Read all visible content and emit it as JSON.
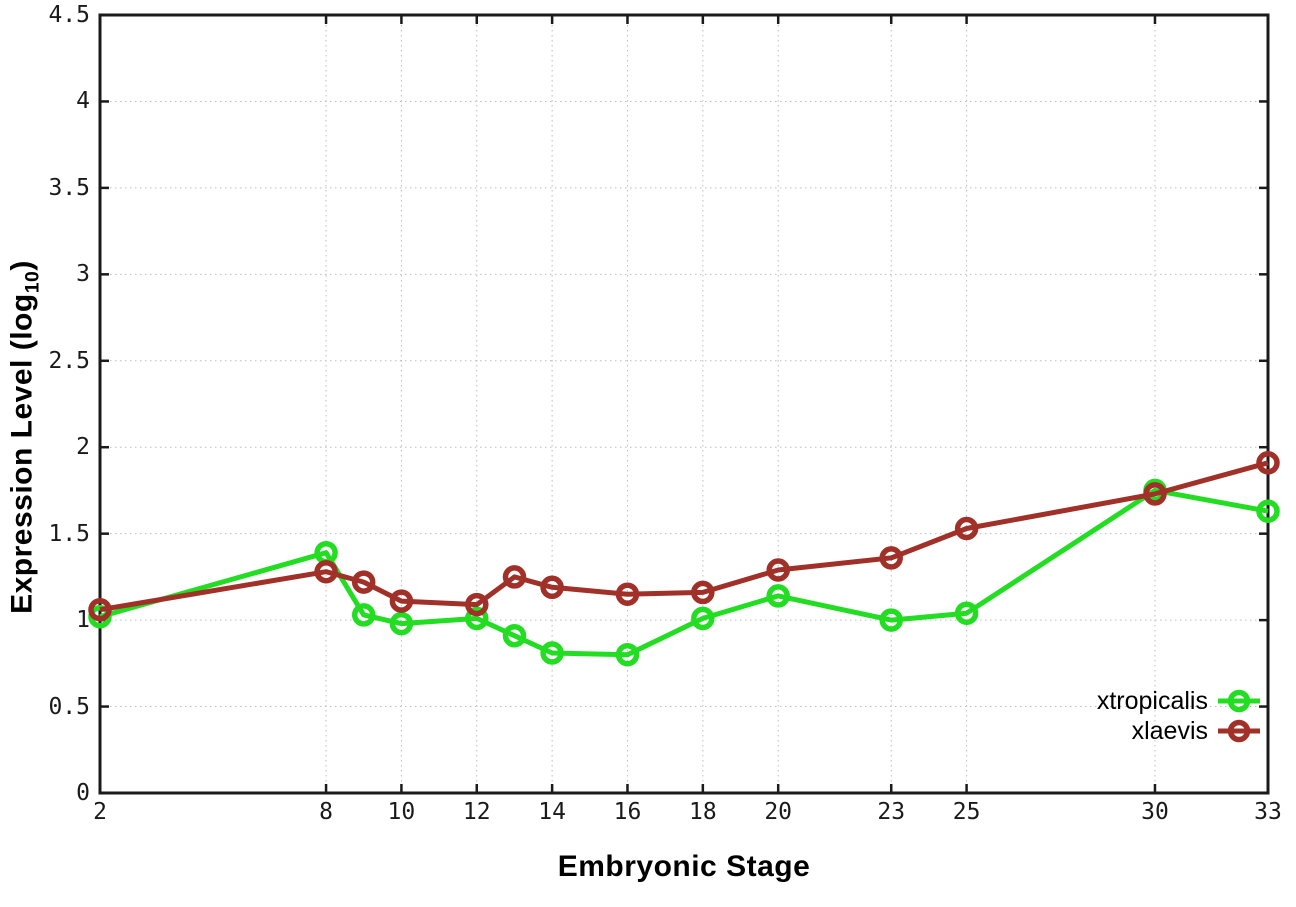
{
  "chart_data": {
    "type": "line",
    "title": "",
    "xlabel": "Embryonic Stage",
    "ylabel": "Expression Level (log10)",
    "ylabel_parts": {
      "main": "Expression Level (log",
      "sub": "10",
      "close": ")"
    },
    "xlim": [
      2,
      33
    ],
    "ylim": [
      0,
      4.5
    ],
    "x_ticks": [
      "2",
      "8",
      "10",
      "12",
      "14",
      "16",
      "18",
      "20",
      "23",
      "25",
      "30",
      "33"
    ],
    "y_ticks": [
      "0",
      "0.5",
      "1",
      "1.5",
      "2",
      "2.5",
      "3",
      "3.5",
      "4",
      "4.5"
    ],
    "grid": true,
    "legend_position": "bottom-right",
    "series": [
      {
        "name": "xtropicalis",
        "color": "#22dd22",
        "points": [
          [
            2,
            1.02
          ],
          [
            8,
            1.39
          ],
          [
            9,
            1.03
          ],
          [
            10,
            0.98
          ],
          [
            12,
            1.01
          ],
          [
            13,
            0.91
          ],
          [
            14,
            0.81
          ],
          [
            16,
            0.8
          ],
          [
            18,
            1.01
          ],
          [
            20,
            1.14
          ],
          [
            23,
            1.0
          ],
          [
            25,
            1.04
          ],
          [
            30,
            1.75
          ],
          [
            33,
            1.63
          ]
        ]
      },
      {
        "name": "xlaevis",
        "color": "#a03028",
        "points": [
          [
            2,
            1.06
          ],
          [
            8,
            1.28
          ],
          [
            9,
            1.22
          ],
          [
            10,
            1.11
          ],
          [
            12,
            1.09
          ],
          [
            13,
            1.25
          ],
          [
            14,
            1.19
          ],
          [
            16,
            1.15
          ],
          [
            18,
            1.16
          ],
          [
            20,
            1.29
          ],
          [
            23,
            1.36
          ],
          [
            25,
            1.53
          ],
          [
            30,
            1.73
          ],
          [
            33,
            1.91
          ]
        ]
      }
    ],
    "colors": {
      "axis": "#1a1a1a",
      "grid": "#bdbdbd",
      "background": "#ffffff"
    }
  }
}
